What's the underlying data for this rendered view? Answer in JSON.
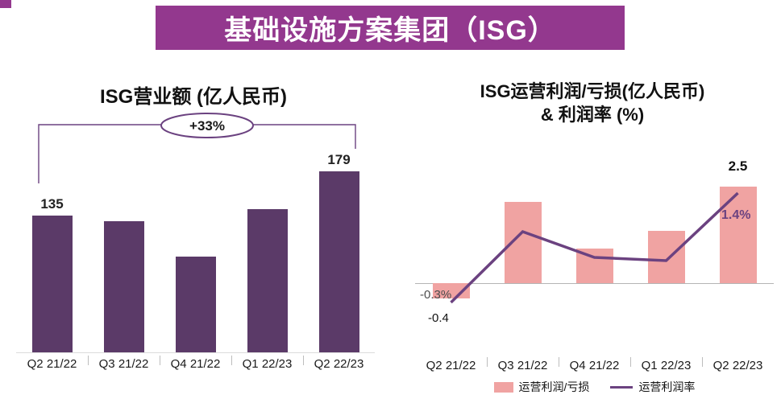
{
  "header": {
    "title": "基础设施方案集团（ISG）"
  },
  "colors": {
    "banner": "#93388e",
    "revenue_bar": "#5b3a68",
    "profit_bar": "#f0a3a2",
    "margin_line": "#6b4280"
  },
  "chart_data": [
    {
      "type": "bar",
      "title": "ISG营业额 (亿人民币)",
      "categories": [
        "Q2 21/22",
        "Q3 21/22",
        "Q4 21/22",
        "Q1 22/23",
        "Q2 22/23"
      ],
      "values": [
        135,
        130,
        95,
        142,
        179
      ],
      "value_labels": [
        "135",
        "",
        "",
        "",
        "179"
      ],
      "annotation": "+33%",
      "bar_color": "#5b3a68",
      "xlabel": "",
      "ylabel": "亿人民币",
      "ylim": [
        0,
        190
      ],
      "grid": false
    },
    {
      "type": "bar+line",
      "title": "ISG运营利润/亏损(亿人民币) & 利润率 (%)",
      "title_lines": [
        "ISG运营利润/亏损(亿人民币)",
        "& 利润率 (%)"
      ],
      "categories": [
        "Q2 21/22",
        "Q3 21/22",
        "Q4 21/22",
        "Q1 22/23",
        "Q2 22/23"
      ],
      "series": [
        {
          "name": "运营利润/亏损",
          "type": "bar",
          "color": "#f0a3a2",
          "values": [
            -0.4,
            2.1,
            0.9,
            1.35,
            2.5
          ]
        },
        {
          "name": "运营利润率",
          "type": "line",
          "color": "#6b4280",
          "unit": "%",
          "values": [
            -0.3,
            0.8,
            0.4,
            0.35,
            1.4
          ]
        }
      ],
      "annotations": {
        "start_margin": "-0.3%",
        "start_bar": "-0.4",
        "end_bar": "2.5",
        "end_margin": "1.4%"
      },
      "legend_position": "bottom",
      "bar_ylim": [
        -0.6,
        2.6
      ],
      "grid": false
    }
  ]
}
